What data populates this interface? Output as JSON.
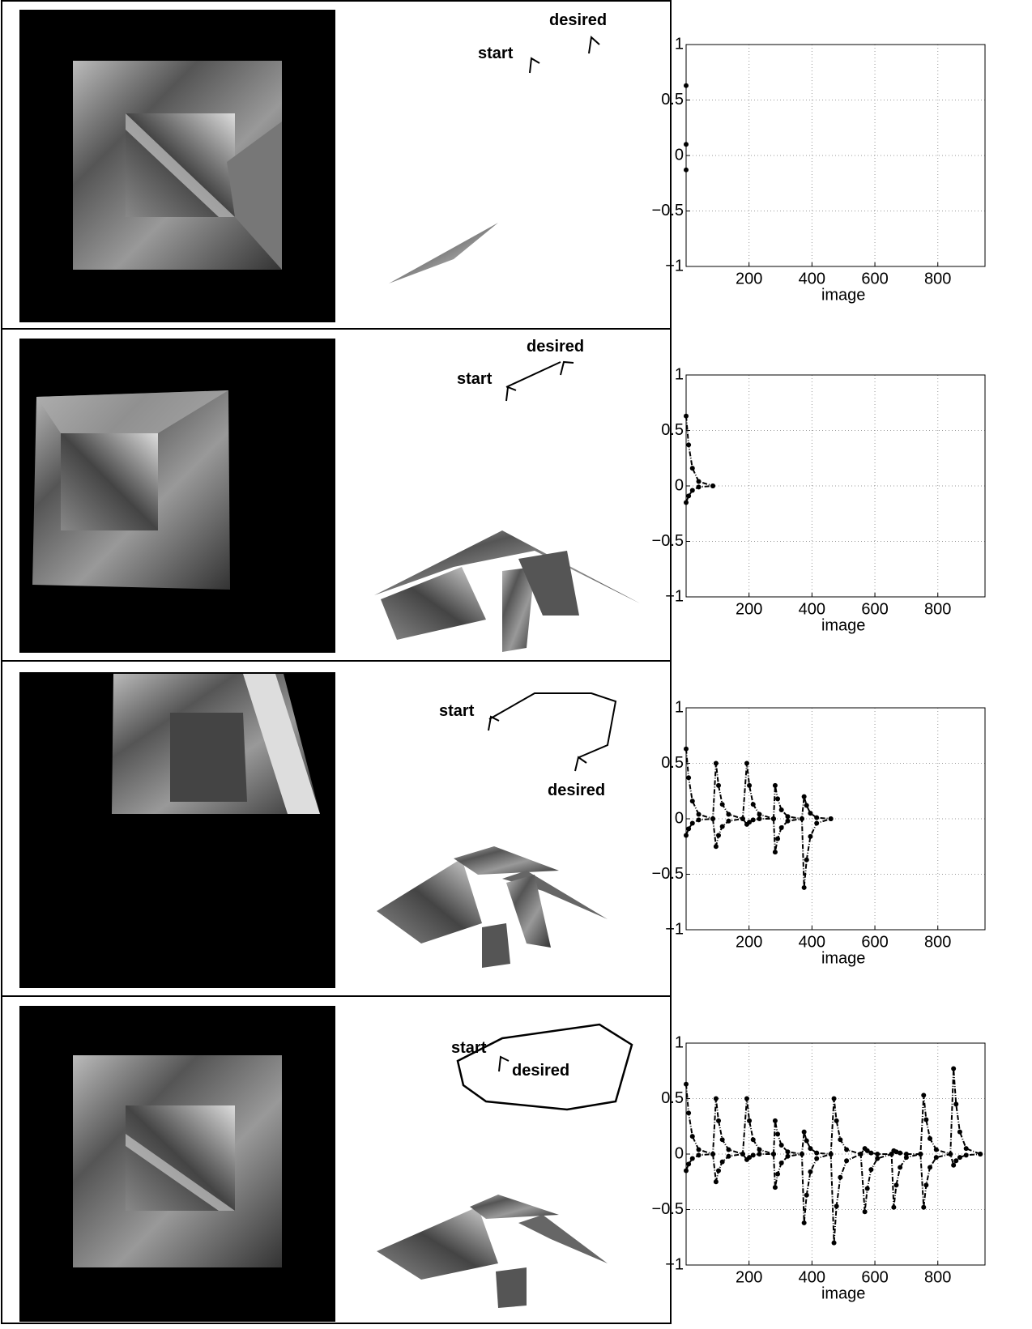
{
  "panels": [
    {
      "start": "start",
      "desired": "desired"
    },
    {
      "start": "start",
      "desired": "desired"
    },
    {
      "start": "start",
      "desired": "desired"
    },
    {
      "start": "start",
      "desired": "desired"
    }
  ],
  "chart_data": [
    {
      "type": "line",
      "xlabel": "image",
      "xlim": [
        0,
        950
      ],
      "ylim": [
        -1,
        1
      ],
      "xticks": [
        200,
        400,
        600,
        800
      ],
      "yticks": [
        {
          "value": -1,
          "label": "−1"
        },
        {
          "value": -0.5,
          "label": "−0.5"
        },
        0,
        0.5,
        1
      ],
      "grid": true,
      "color": "#000000",
      "x": [
        0
      ],
      "series": [
        {
          "values": [
            0.63
          ]
        },
        {
          "values": [
            0.1
          ]
        },
        {
          "values": [
            -0.13
          ]
        }
      ]
    },
    {
      "type": "line",
      "xlabel": "image",
      "xlim": [
        0,
        950
      ],
      "ylim": [
        -1,
        1
      ],
      "xticks": [
        200,
        400,
        600,
        800
      ],
      "yticks": [
        {
          "value": -1,
          "label": "−1"
        },
        {
          "value": -0.5,
          "label": "−0.5"
        },
        0,
        0.5,
        1
      ],
      "grid": true,
      "color": "#000000",
      "x": [
        0,
        8,
        20,
        40,
        85
      ],
      "series": [
        {
          "values": [
            0.63,
            0.37,
            0.16,
            0.04,
            0
          ]
        },
        {
          "values": [
            -0.15,
            -0.09,
            -0.04,
            -0.01,
            0
          ]
        }
      ]
    },
    {
      "type": "line",
      "xlabel": "image",
      "xlim": [
        0,
        950
      ],
      "ylim": [
        -1,
        1
      ],
      "xticks": [
        200,
        400,
        600,
        800
      ],
      "yticks": [
        {
          "value": -1,
          "label": "−1"
        },
        {
          "value": -0.5,
          "label": "−0.5"
        },
        0,
        0.5,
        1
      ],
      "grid": true,
      "color": "#000000",
      "x": [
        0,
        8,
        20,
        40,
        85,
        95,
        103,
        115,
        135,
        180,
        193,
        201,
        213,
        233,
        278,
        283,
        291,
        303,
        323,
        368,
        375,
        383,
        395,
        415,
        460
      ],
      "series": [
        {
          "values": [
            0.63,
            0.37,
            0.16,
            0.04,
            0,
            0.5,
            0.3,
            0.13,
            0.04,
            0,
            0.5,
            0.3,
            0.13,
            0.04,
            0,
            0.3,
            0.18,
            0.08,
            0.02,
            0,
            0.2,
            0.12,
            0.05,
            0.01,
            0
          ]
        },
        {
          "values": [
            -0.15,
            -0.09,
            -0.04,
            -0.01,
            0,
            -0.25,
            -0.15,
            -0.07,
            -0.02,
            0,
            -0.05,
            -0.03,
            -0.01,
            0,
            0,
            -0.3,
            -0.18,
            -0.08,
            -0.02,
            0,
            -0.62,
            -0.37,
            -0.16,
            -0.04,
            0
          ]
        }
      ]
    },
    {
      "type": "line",
      "xlabel": "image",
      "xlim": [
        0,
        950
      ],
      "ylim": [
        -1,
        1
      ],
      "xticks": [
        200,
        400,
        600,
        800
      ],
      "yticks": [
        {
          "value": -1,
          "label": "−1"
        },
        {
          "value": -0.5,
          "label": "−0.5"
        },
        0,
        0.5,
        1
      ],
      "grid": true,
      "color": "#000000",
      "x": [
        0,
        8,
        20,
        40,
        85,
        95,
        103,
        115,
        135,
        180,
        193,
        201,
        213,
        233,
        278,
        283,
        291,
        303,
        323,
        368,
        375,
        383,
        395,
        415,
        460,
        470,
        478,
        490,
        510,
        555,
        568,
        576,
        588,
        608,
        653,
        660,
        668,
        680,
        700,
        745,
        755,
        763,
        775,
        795,
        840,
        850,
        858,
        870,
        890,
        935
      ],
      "series": [
        {
          "values": [
            0.63,
            0.37,
            0.16,
            0.04,
            0,
            0.5,
            0.3,
            0.13,
            0.04,
            0,
            0.5,
            0.3,
            0.13,
            0.04,
            0,
            0.3,
            0.18,
            0.08,
            0.02,
            0,
            0.2,
            0.12,
            0.05,
            0.01,
            0,
            0.5,
            0.3,
            0.13,
            0.04,
            0,
            0.05,
            0.03,
            0.01,
            0,
            0,
            0.03,
            0.02,
            0.01,
            0,
            0,
            0.53,
            0.31,
            0.14,
            0.04,
            0,
            0.77,
            0.45,
            0.2,
            0.05,
            0
          ]
        },
        {
          "values": [
            -0.15,
            -0.09,
            -0.04,
            -0.01,
            0,
            -0.25,
            -0.15,
            -0.07,
            -0.02,
            0,
            -0.05,
            -0.03,
            -0.01,
            0,
            0,
            -0.3,
            -0.18,
            -0.08,
            -0.02,
            0,
            -0.62,
            -0.37,
            -0.16,
            -0.04,
            0,
            -0.8,
            -0.47,
            -0.21,
            -0.06,
            0,
            -0.52,
            -0.31,
            -0.14,
            -0.04,
            0,
            -0.48,
            -0.28,
            -0.12,
            -0.03,
            0,
            -0.48,
            -0.28,
            -0.12,
            -0.03,
            0,
            -0.1,
            -0.06,
            -0.03,
            -0.01,
            0
          ]
        }
      ]
    }
  ]
}
